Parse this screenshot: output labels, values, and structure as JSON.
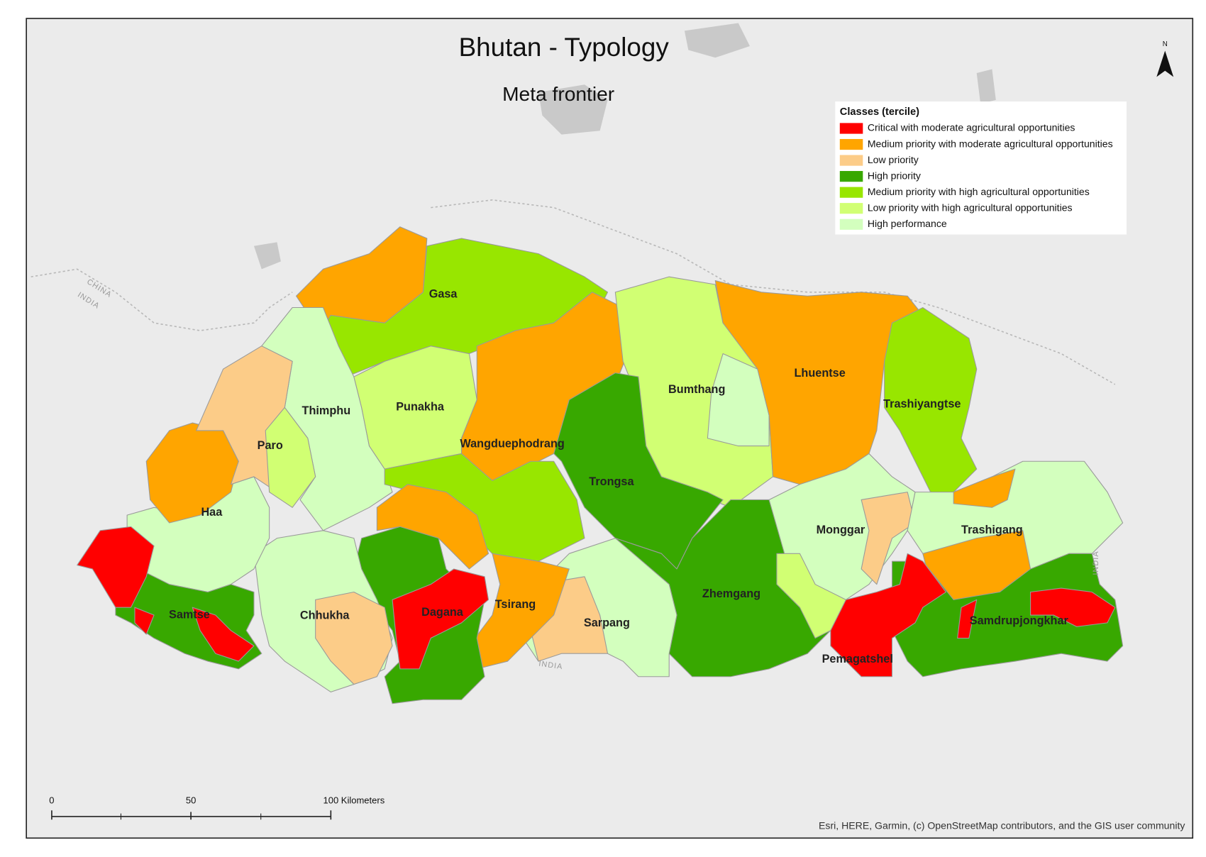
{
  "title": "Bhutan - Typology",
  "subtitle": "Meta frontier",
  "north": "N",
  "legend": {
    "title": "Classes (tercile)",
    "items": [
      {
        "label": "Critical with moderate agricultural opportunities",
        "color": "#ff0000"
      },
      {
        "label": "Medium priority with moderate agricultural opportunities",
        "color": "#ffa500"
      },
      {
        "label": "Low priority",
        "color": "#fccc88"
      },
      {
        "label": "High priority",
        "color": "#38a800"
      },
      {
        "label": "Medium priority with high agricultural opportunities",
        "color": "#98e600"
      },
      {
        "label": "Low priority with high agricultural opportunities",
        "color": "#d1ff73"
      },
      {
        "label": "High performance",
        "color": "#d3ffbe"
      }
    ]
  },
  "districts": [
    "Gasa",
    "Thimphu",
    "Punakha",
    "Paro",
    "Wangduephodrang",
    "Bumthang",
    "Lhuentse",
    "Trashiyangtse",
    "Trongsa",
    "Haa",
    "Monggar",
    "Trashigang",
    "Zhemgang",
    "Samtse",
    "Chhukha",
    "Dagana",
    "Tsirang",
    "Sarpang",
    "Samdrupjongkhar",
    "Pemagatshel"
  ],
  "background_labels": [
    "CHINA",
    "INDIA",
    "INDIA",
    "INDIA"
  ],
  "scale_bar": [
    "0",
    "50",
    "100 Kilometers"
  ],
  "attribution": "Esri, HERE, Garmin, (c) OpenStreetMap contributors, and the GIS user community"
}
